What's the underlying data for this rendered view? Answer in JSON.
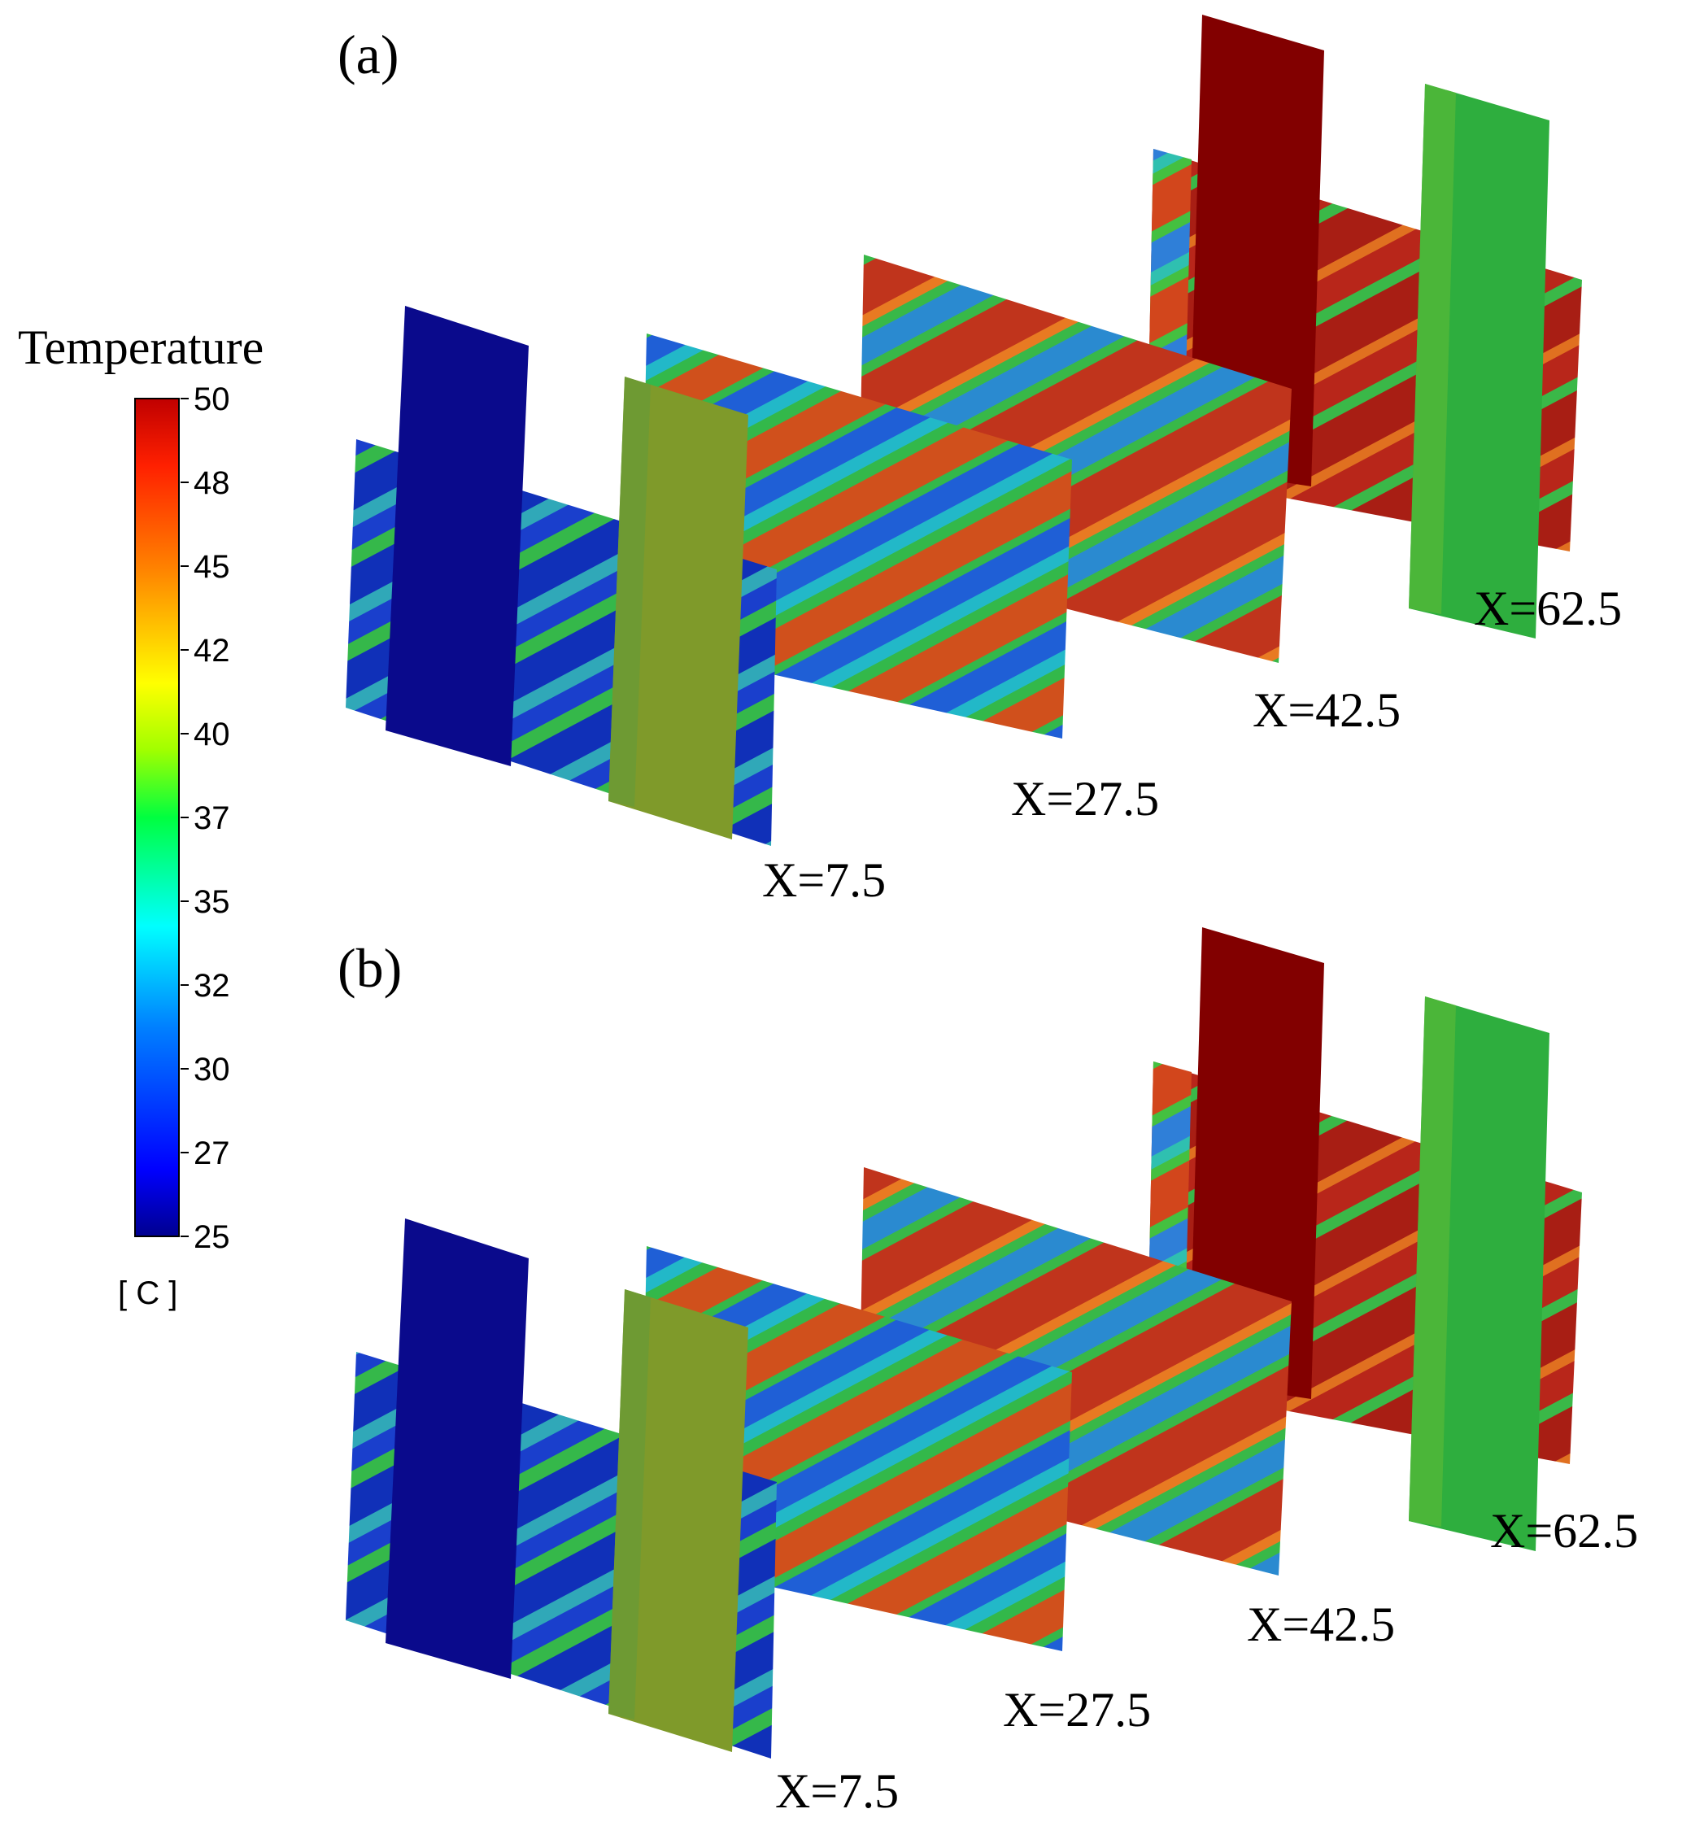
{
  "legend": {
    "title": "Temperature",
    "unit": "[ C ]",
    "min": 25,
    "max": 50,
    "ticks": [
      "50",
      "48",
      "45",
      "42",
      "40",
      "37",
      "35",
      "32",
      "30",
      "27",
      "25"
    ],
    "colormap": [
      "#00008f",
      "#0000ff",
      "#0080ff",
      "#00ffff",
      "#00ff40",
      "#a0ff00",
      "#ffff00",
      "#ff8000",
      "#ff2000",
      "#c00000"
    ]
  },
  "panels": [
    {
      "label": "(a)",
      "planes": [
        {
          "label": "X=7.5",
          "block_temperature": 25,
          "plate_temperature": 40
        },
        {
          "label": "X=27.5"
        },
        {
          "label": "X=42.5"
        },
        {
          "label": "X=62.5",
          "block_temperature": 50,
          "plate_temperature": 37
        }
      ]
    },
    {
      "label": "(b)",
      "planes": [
        {
          "label": "X=7.5",
          "block_temperature": 25,
          "plate_temperature": 40
        },
        {
          "label": "X=27.5"
        },
        {
          "label": "X=42.5"
        },
        {
          "label": "X=62.5",
          "block_temperature": 50,
          "plate_temperature": 37
        }
      ]
    }
  ],
  "colors": {
    "cold": "#0a0a8c",
    "blue": "#1f5fd6",
    "cyan": "#22b8c8",
    "green": "#33b84a",
    "olive": "#7f9a2a",
    "orange": "#e06a1e",
    "red": "#c8321e",
    "hot": "#820000"
  }
}
